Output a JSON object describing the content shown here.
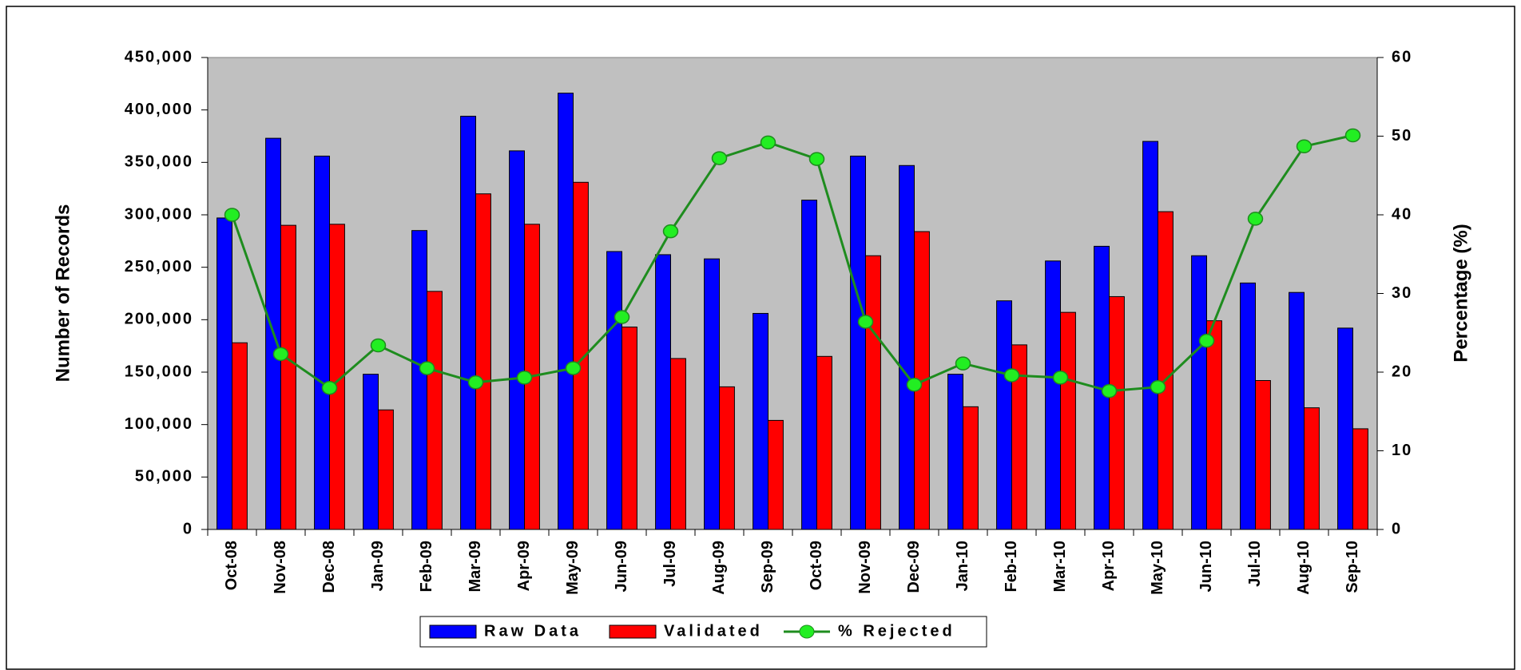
{
  "chart_data": {
    "type": "bar",
    "y_label": "Number of Records",
    "y2_label": "Percentage (%)",
    "categories": [
      "Oct-08",
      "Nov-08",
      "Dec-08",
      "Jan-09",
      "Feb-09",
      "Mar-09",
      "Apr-09",
      "May-09",
      "Jun-09",
      "Jul-09",
      "Aug-09",
      "Sep-09",
      "Oct-09",
      "Nov-09",
      "Dec-09",
      "Jan-10",
      "Feb-10",
      "Mar-10",
      "Apr-10",
      "May-10",
      "Jun-10",
      "Jul-10",
      "Aug-10",
      "Sep-10"
    ],
    "series": [
      {
        "name": "Raw Data",
        "type": "bar",
        "color": "#0000ff",
        "values": [
          297000,
          373000,
          356000,
          148000,
          285000,
          394000,
          361000,
          416000,
          265000,
          262000,
          258000,
          206000,
          314000,
          356000,
          347000,
          148000,
          218000,
          256000,
          270000,
          370000,
          261000,
          235000,
          226000,
          192000
        ]
      },
      {
        "name": "Validated",
        "type": "bar",
        "color": "#ff0000",
        "values": [
          178000,
          290000,
          291000,
          114000,
          227000,
          320000,
          291000,
          331000,
          193000,
          163000,
          136000,
          104000,
          165000,
          261000,
          284000,
          117000,
          176000,
          207000,
          222000,
          303000,
          199000,
          142000,
          116000,
          96000
        ]
      },
      {
        "name": "% Rejected",
        "type": "line",
        "axis": "y2",
        "color": "#1e8c1e",
        "marker_color": "#22ee22",
        "values": [
          40.0,
          22.3,
          18.0,
          23.4,
          20.5,
          18.7,
          19.3,
          20.5,
          27.0,
          37.9,
          47.2,
          49.2,
          47.1,
          26.4,
          18.4,
          21.1,
          19.6,
          19.3,
          17.6,
          18.1,
          24.0,
          39.5,
          48.7,
          50.1
        ]
      }
    ],
    "ylim": [
      0,
      450000
    ],
    "yticks": [
      0,
      {
        "value": 50000,
        "label": "50,000"
      },
      {
        "value": 100000,
        "label": "100,000"
      },
      {
        "value": 150000,
        "label": "150,000"
      },
      {
        "value": 200000,
        "label": "200,000"
      },
      {
        "value": 250000,
        "label": "250,000"
      },
      {
        "value": 300000,
        "label": "300,000"
      },
      {
        "value": 350000,
        "label": "350,000"
      },
      {
        "value": 400000,
        "label": "400,000"
      },
      {
        "value": 450000,
        "label": "450,000"
      }
    ],
    "y2lim": [
      0,
      60
    ],
    "y2ticks": [
      0,
      10,
      20,
      30,
      40,
      50,
      60
    ],
    "plot_background": "#c0c0c0",
    "legend": "bottom"
  }
}
